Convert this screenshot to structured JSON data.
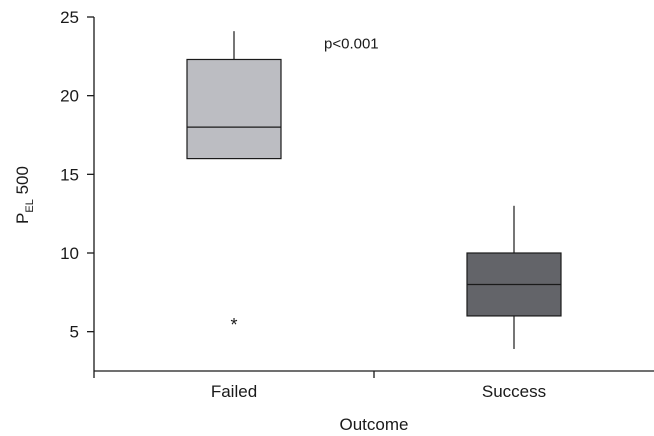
{
  "chart_data": {
    "type": "box",
    "title": "",
    "xlabel": "Outcome",
    "ylabel": {
      "main": "P",
      "sub": "EL",
      "suffix": " 500"
    },
    "ylim": [
      2.5,
      25
    ],
    "yticks": [
      5,
      10,
      15,
      20,
      25
    ],
    "categories": [
      "Failed",
      "Success"
    ],
    "boxes": [
      {
        "category": "Failed",
        "whisker_low": 16,
        "q1": 16,
        "median": 18,
        "q3": 22.3,
        "whisker_high": 24.1,
        "outliers": [
          5.8
        ],
        "color": "#bcbdc2"
      },
      {
        "category": "Success",
        "whisker_low": 3.9,
        "q1": 6,
        "median": 8,
        "q3": 10,
        "whisker_high": 13,
        "outliers": [],
        "color": "#636469"
      }
    ],
    "annotations": [
      {
        "text": "p<0.001",
        "x": 1.5,
        "y": 23
      }
    ],
    "outlier_marker": "*",
    "grid": false
  }
}
